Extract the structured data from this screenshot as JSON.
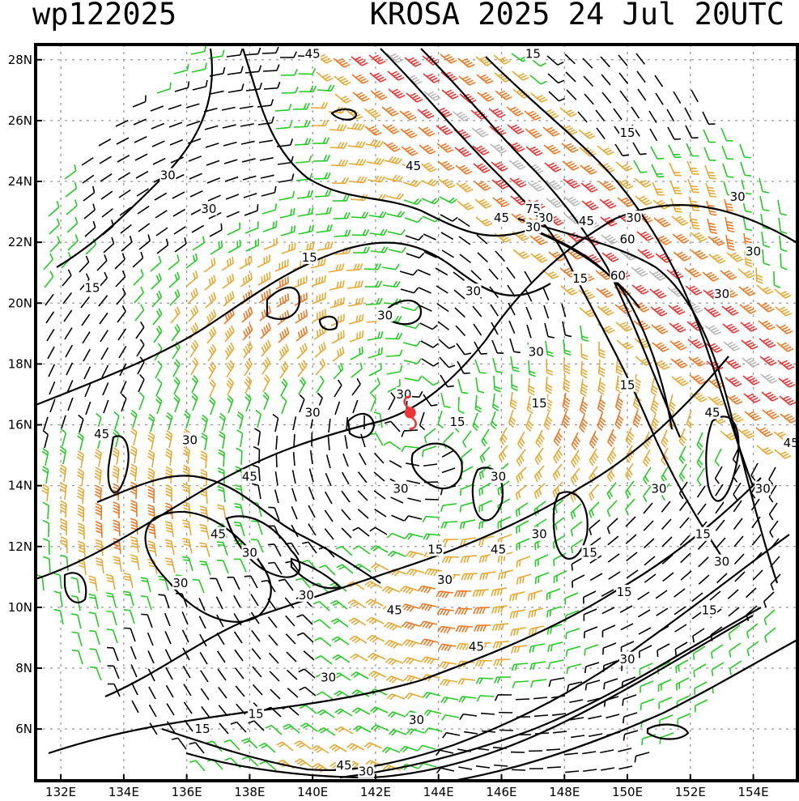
{
  "header": {
    "product_id": "wp122025",
    "storm_info": "KROSA 2025 24 Jul 20UTC"
  },
  "map": {
    "lon_range": [
      131.2,
      155.4
    ],
    "lat_range": [
      4.3,
      28.5
    ],
    "lon_ticks": [
      "132E",
      "134E",
      "136E",
      "138E",
      "140E",
      "142E",
      "144E",
      "146E",
      "148E",
      "150E",
      "152E",
      "154E"
    ],
    "lat_ticks": [
      "6N",
      "8N",
      "10N",
      "12N",
      "14N",
      "16N",
      "18N",
      "20N",
      "22N",
      "24N",
      "26N",
      "28N"
    ],
    "storm_center_lon": 143.1,
    "storm_center_lat": 16.4,
    "gridlines": true,
    "barb_colors": {
      "calm": "#000000",
      "light": "#22cc22",
      "moderate": "#e8a830",
      "strong": "#ee7722",
      "very_strong": "#ee3333",
      "extreme": "#b8b8b8"
    },
    "storm_marker_color": "#ee3333",
    "contour_labels": [
      {
        "text": "45",
        "lon": 140.0,
        "lat": 28.2
      },
      {
        "text": "15",
        "lon": 147.0,
        "lat": 28.2
      },
      {
        "text": "15",
        "lon": 150.0,
        "lat": 25.6
      },
      {
        "text": "45",
        "lon": 143.2,
        "lat": 24.5
      },
      {
        "text": "30",
        "lon": 135.4,
        "lat": 24.2
      },
      {
        "text": "30",
        "lon": 153.5,
        "lat": 23.5
      },
      {
        "text": "75",
        "lon": 147.0,
        "lat": 23.1
      },
      {
        "text": "45",
        "lon": 146.0,
        "lat": 22.8
      },
      {
        "text": "30",
        "lon": 147.4,
        "lat": 22.8
      },
      {
        "text": "30",
        "lon": 147.0,
        "lat": 22.5
      },
      {
        "text": "45",
        "lon": 148.7,
        "lat": 22.7
      },
      {
        "text": "30",
        "lon": 150.2,
        "lat": 22.8
      },
      {
        "text": "30",
        "lon": 136.7,
        "lat": 23.1
      },
      {
        "text": "60",
        "lon": 150.0,
        "lat": 22.1
      },
      {
        "text": "15",
        "lon": 139.9,
        "lat": 21.5
      },
      {
        "text": "30",
        "lon": 154.0,
        "lat": 21.7
      },
      {
        "text": "15",
        "lon": 148.5,
        "lat": 20.8
      },
      {
        "text": "60",
        "lon": 149.7,
        "lat": 20.9
      },
      {
        "text": "15",
        "lon": 133.0,
        "lat": 20.5
      },
      {
        "text": "30",
        "lon": 145.1,
        "lat": 20.4
      },
      {
        "text": "30",
        "lon": 153.0,
        "lat": 20.3
      },
      {
        "text": "30",
        "lon": 142.3,
        "lat": 19.6
      },
      {
        "text": "30",
        "lon": 147.1,
        "lat": 18.4
      },
      {
        "text": "30",
        "lon": 142.9,
        "lat": 17.0
      },
      {
        "text": "15",
        "lon": 150.0,
        "lat": 17.3
      },
      {
        "text": "15",
        "lon": 147.2,
        "lat": 16.7
      },
      {
        "text": "30",
        "lon": 140.0,
        "lat": 16.4
      },
      {
        "text": "45",
        "lon": 152.7,
        "lat": 16.4
      },
      {
        "text": "15",
        "lon": 144.6,
        "lat": 16.1
      },
      {
        "text": "45",
        "lon": 133.3,
        "lat": 15.7
      },
      {
        "text": "30",
        "lon": 136.1,
        "lat": 15.5
      },
      {
        "text": "45",
        "lon": 155.2,
        "lat": 15.4
      },
      {
        "text": "45",
        "lon": 138.0,
        "lat": 14.3
      },
      {
        "text": "30",
        "lon": 145.9,
        "lat": 14.3
      },
      {
        "text": "30",
        "lon": 142.8,
        "lat": 13.9
      },
      {
        "text": "30",
        "lon": 151.0,
        "lat": 13.9
      },
      {
        "text": "30",
        "lon": 154.3,
        "lat": 13.9
      },
      {
        "text": "45",
        "lon": 137.0,
        "lat": 12.4
      },
      {
        "text": "30",
        "lon": 147.2,
        "lat": 12.4
      },
      {
        "text": "15",
        "lon": 152.4,
        "lat": 12.4
      },
      {
        "text": "15",
        "lon": 143.9,
        "lat": 11.9
      },
      {
        "text": "45",
        "lon": 145.9,
        "lat": 11.9
      },
      {
        "text": "15",
        "lon": 148.8,
        "lat": 11.8
      },
      {
        "text": "30",
        "lon": 138.0,
        "lat": 11.8
      },
      {
        "text": "30",
        "lon": 153.0,
        "lat": 11.5
      },
      {
        "text": "30",
        "lon": 144.2,
        "lat": 10.9
      },
      {
        "text": "30",
        "lon": 135.8,
        "lat": 10.8
      },
      {
        "text": "30",
        "lon": 139.8,
        "lat": 10.4
      },
      {
        "text": "15",
        "lon": 149.9,
        "lat": 10.5
      },
      {
        "text": "45",
        "lon": 142.6,
        "lat": 9.9
      },
      {
        "text": "15",
        "lon": 152.6,
        "lat": 9.9
      },
      {
        "text": "45",
        "lon": 145.2,
        "lat": 8.7
      },
      {
        "text": "30",
        "lon": 150.0,
        "lat": 8.3
      },
      {
        "text": "30",
        "lon": 140.5,
        "lat": 7.7
      },
      {
        "text": "15",
        "lon": 138.2,
        "lat": 6.5
      },
      {
        "text": "30",
        "lon": 143.3,
        "lat": 6.3
      },
      {
        "text": "15",
        "lon": 136.5,
        "lat": 6.0
      },
      {
        "text": "45",
        "lon": 141.0,
        "lat": 4.8
      },
      {
        "text": "30",
        "lon": 141.7,
        "lat": 4.6
      }
    ]
  }
}
